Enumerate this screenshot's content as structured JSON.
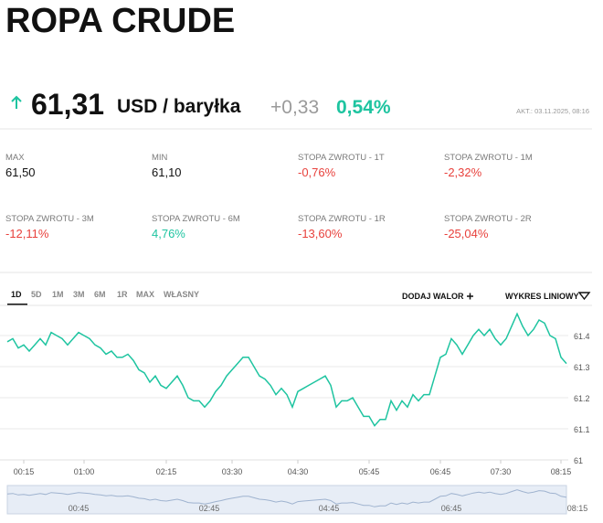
{
  "header": {
    "title": "ROPA CRUDE"
  },
  "quote": {
    "price": "61,31",
    "unit": "USD / baryłka",
    "change": "+0,33",
    "change_pct": "0,54%",
    "updated": "AKT.: 03.11.2025, 08:16",
    "color": "#1ec4a0"
  },
  "stats": [
    {
      "label": "MAX",
      "value": "61,50",
      "color": "#111111"
    },
    {
      "label": "MIN",
      "value": "61,10",
      "color": "#111111"
    },
    {
      "label": "STOPA ZWROTU - 1T",
      "value": "-0,76%",
      "color": "#e8413c"
    },
    {
      "label": "STOPA ZWROTU - 1M",
      "value": "-2,32%",
      "color": "#e8413c"
    },
    {
      "label": "STOPA ZWROTU - 3M",
      "value": "-12,11%",
      "color": "#e8413c"
    },
    {
      "label": "STOPA ZWROTU - 6M",
      "value": "4,76%",
      "color": "#1ec4a0"
    },
    {
      "label": "STOPA ZWROTU - 1R",
      "value": "-13,60%",
      "color": "#e8413c"
    },
    {
      "label": "STOPA ZWROTU - 2R",
      "value": "-25,04%",
      "color": "#e8413c"
    }
  ],
  "tabs": [
    "1D",
    "5D",
    "1M",
    "3M",
    "6M",
    "1R",
    "MAX",
    "WŁASNY"
  ],
  "actions": [
    "DODAJ WALOR",
    "WYKRES LINIOWY"
  ],
  "chart_data": {
    "type": "line",
    "color": "#1ec4a0",
    "grid": true,
    "categories": [
      null,
      null,
      null,
      "00:15",
      null,
      null,
      null,
      null,
      null,
      null,
      null,
      null,
      null,
      null,
      "01:00",
      null,
      null,
      null,
      null,
      null,
      null,
      null,
      null,
      null,
      null,
      null,
      null,
      null,
      null,
      "02:15",
      null,
      null,
      null,
      null,
      null,
      null,
      null,
      null,
      null,
      null,
      null,
      "03:30",
      null,
      null,
      null,
      null,
      null,
      null,
      null,
      null,
      null,
      null,
      null,
      "04:30",
      null,
      null,
      null,
      null,
      null,
      null,
      null,
      null,
      null,
      null,
      null,
      null,
      "05:45",
      null,
      null,
      null,
      null,
      null,
      null,
      null,
      null,
      null,
      null,
      null,
      null,
      "06:45",
      null,
      null,
      null,
      null,
      null,
      null,
      null,
      null,
      null,
      null,
      "07:30",
      null,
      null,
      null,
      null,
      null,
      null,
      null,
      null,
      null,
      null,
      "08:15",
      null
    ],
    "values": [
      61.38,
      61.39,
      61.36,
      61.37,
      61.35,
      61.37,
      61.39,
      61.37,
      61.41,
      61.4,
      61.39,
      61.37,
      61.39,
      61.41,
      61.4,
      61.39,
      61.37,
      61.36,
      61.34,
      61.35,
      61.33,
      61.33,
      61.34,
      61.32,
      61.29,
      61.28,
      61.25,
      61.27,
      61.24,
      61.23,
      61.25,
      61.27,
      61.24,
      61.2,
      61.19,
      61.19,
      61.17,
      61.19,
      61.22,
      61.24,
      61.27,
      61.29,
      61.31,
      61.33,
      61.33,
      61.3,
      61.27,
      61.26,
      61.24,
      61.21,
      61.23,
      61.21,
      61.17,
      61.22,
      61.23,
      61.24,
      61.25,
      61.26,
      61.27,
      61.24,
      61.17,
      61.19,
      61.19,
      61.2,
      61.17,
      61.14,
      61.14,
      61.11,
      61.13,
      61.13,
      61.19,
      61.16,
      61.19,
      61.17,
      61.21,
      61.19,
      61.21,
      61.21,
      61.27,
      61.33,
      61.34,
      61.39,
      61.37,
      61.34,
      61.37,
      61.4,
      61.42,
      61.4,
      61.42,
      61.39,
      61.37,
      61.39,
      61.43,
      61.47,
      61.43,
      61.4,
      61.42,
      61.45,
      61.44,
      61.4,
      61.39,
      61.33,
      61.31
    ],
    "ylim": [
      61,
      61.5
    ],
    "yticks": [
      61,
      61.1,
      61.2,
      61.3,
      61.4
    ]
  },
  "navigator": {
    "labels": [
      "00:45",
      "02:45",
      "04:45",
      "06:45",
      "08:15"
    ]
  }
}
